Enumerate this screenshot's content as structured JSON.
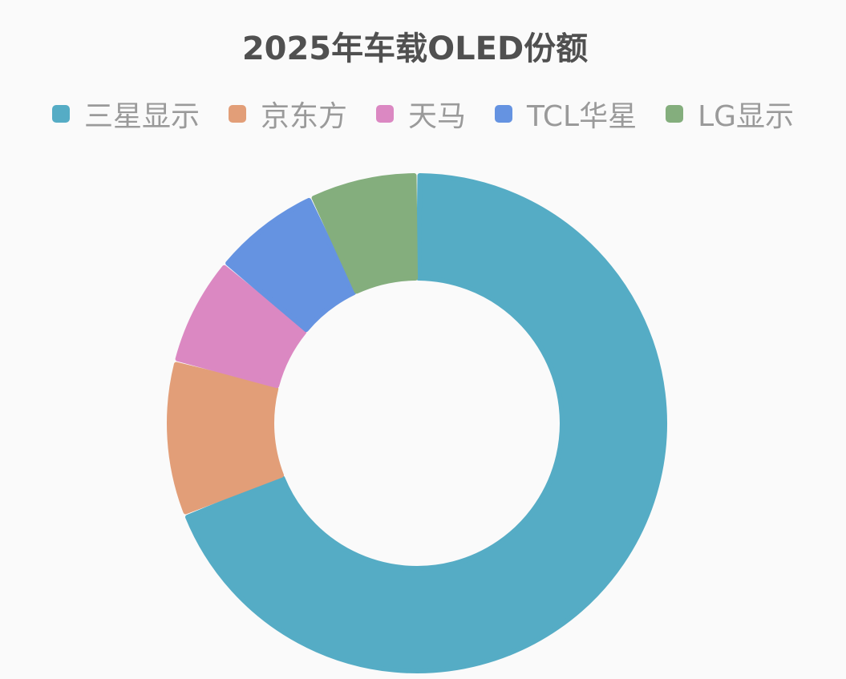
{
  "chart_data": {
    "type": "pie",
    "variant": "donut",
    "title": "2025年车载OLED份额",
    "legend_position": "top",
    "slices": [
      {
        "name": "三星显示",
        "value": 69,
        "color": "#55acc5"
      },
      {
        "name": "京东方",
        "value": 10,
        "color": "#e29e78"
      },
      {
        "name": "天马",
        "value": 7,
        "color": "#db88c2"
      },
      {
        "name": "TCL华星",
        "value": 7,
        "color": "#6593e1"
      },
      {
        "name": "LG显示",
        "value": 7,
        "color": "#84ae7d"
      }
    ]
  }
}
